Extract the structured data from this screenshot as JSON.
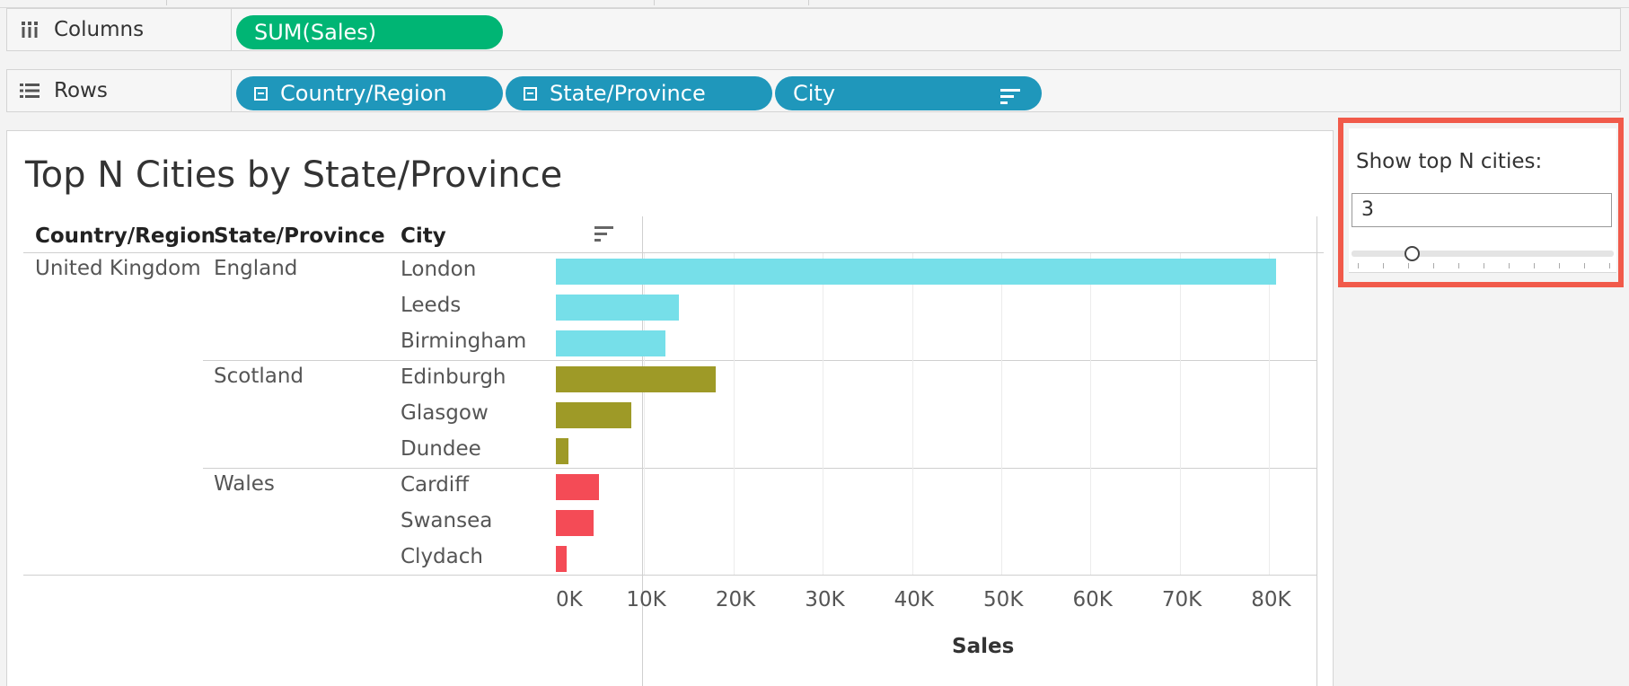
{
  "columns_shelf": {
    "label": "Columns",
    "pills": [
      {
        "label": "SUM(Sales)"
      }
    ]
  },
  "rows_shelf": {
    "label": "Rows",
    "pills": [
      {
        "label": "Country/Region"
      },
      {
        "label": "State/Province"
      },
      {
        "label": "City"
      }
    ]
  },
  "sheet": {
    "title": "Top N Cities by State/Province",
    "headers": {
      "country": "Country/Region",
      "state": "State/Province",
      "city": "City"
    },
    "country": "United Kingdom",
    "states": [
      "England",
      "Scotland",
      "Wales"
    ]
  },
  "chart_data": {
    "type": "bar",
    "orientation": "horizontal",
    "xlabel": "Sales",
    "xlim": [
      0,
      85000
    ],
    "x_ticks": [
      "0K",
      "10K",
      "20K",
      "30K",
      "40K",
      "50K",
      "60K",
      "70K",
      "80K"
    ],
    "grid": true,
    "series": [
      {
        "group": "England",
        "color": "#76dfe9",
        "cities": [
          "London",
          "Leeds",
          "Birmingham"
        ],
        "values": [
          80700,
          13800,
          12300
        ]
      },
      {
        "group": "Scotland",
        "color": "#9e9a27",
        "cities": [
          "Edinburgh",
          "Glasgow",
          "Dundee"
        ],
        "values": [
          17900,
          8400,
          1400
        ]
      },
      {
        "group": "Wales",
        "color": "#f44b56",
        "cities": [
          "Cardiff",
          "Swansea",
          "Clydach"
        ],
        "values": [
          4800,
          4200,
          1200
        ]
      }
    ]
  },
  "parameter": {
    "label": "Show top N cities:",
    "value": "3",
    "min": 1,
    "max": 20,
    "tick_count": 11
  }
}
